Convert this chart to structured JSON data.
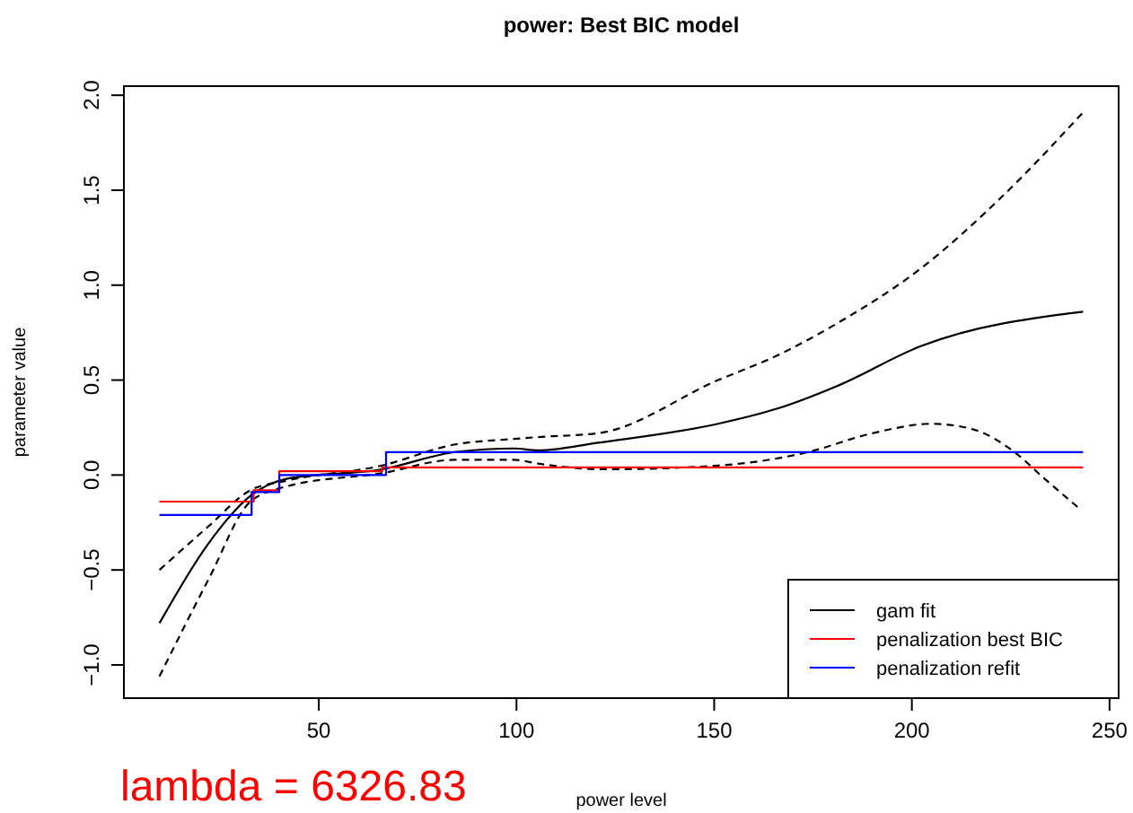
{
  "chart_data": {
    "type": "line",
    "title": "power: Best BIC model",
    "xlabel": "power level",
    "ylabel": "parameter value",
    "xlim": [
      0.7,
      252.3
    ],
    "ylim": [
      -1.175,
      2.048
    ],
    "xticks": [
      50,
      100,
      150,
      200,
      250
    ],
    "yticks": [
      {
        "value": -1.0,
        "label": "−1.0"
      },
      {
        "value": -0.5,
        "label": "−0.5"
      },
      {
        "value": 0.0,
        "label": "0.0"
      },
      {
        "value": 0.5,
        "label": "0.5"
      },
      {
        "value": 1.0,
        "label": "1.0"
      },
      {
        "value": 1.5,
        "label": "1.5"
      },
      {
        "value": 2.0,
        "label": "2.0"
      }
    ],
    "grid": false,
    "legend": "bottom right",
    "marker": "none",
    "annotations": [
      "lambda = 6326.83"
    ],
    "series": [
      {
        "name": "gam fit",
        "color": "#000000",
        "line_style": "solid",
        "x": [
          9.7,
          22.1,
          32.7,
          41.8,
          66,
          84.2,
          99.4,
          105.5,
          120.6,
          151,
          166,
          181.2,
          202.4,
          243.3
        ],
        "values": [
          -0.78,
          -0.36,
          -0.11,
          -0.02,
          0.03,
          0.12,
          0.14,
          0.13,
          0.17,
          0.27,
          0.35,
          0.47,
          0.68,
          0.86
        ]
      },
      {
        "color": "#000000",
        "line_style": "dashed",
        "x": [
          9.7,
          22.1,
          32.7,
          41.8,
          66,
          84.2,
          99.4,
          105.5,
          120.6,
          151,
          166,
          181.2,
          202.4,
          223,
          243.3
        ],
        "values": [
          -0.5,
          -0.27,
          -0.08,
          -0.03,
          0.05,
          0.16,
          0.19,
          0.2,
          0.22,
          0.5,
          0.63,
          0.8,
          1.09,
          1.47,
          1.91
        ]
      },
      {
        "color": "#000000",
        "line_style": "dashed",
        "x": [
          9.7,
          22.1,
          32.7,
          41.8,
          66,
          84.2,
          99.4,
          105.5,
          122,
          151,
          173.6,
          190,
          205,
          215.6,
          226,
          233.6,
          242
        ],
        "values": [
          -1.06,
          -0.55,
          -0.14,
          -0.06,
          0.01,
          0.08,
          0.08,
          0.06,
          0.03,
          0.05,
          0.12,
          0.22,
          0.27,
          0.24,
          0.12,
          -0.02,
          -0.17
        ]
      },
      {
        "name": "penalization best BIC",
        "type": "step",
        "color": "#ff0000",
        "line_style": "solid",
        "x": [
          9.7,
          33.5,
          40,
          66,
          243.3
        ],
        "values": [
          -0.14,
          -0.08,
          0.02,
          0.04,
          0.04
        ]
      },
      {
        "name": "penalization refit",
        "type": "step",
        "color": "#0000ff",
        "line_style": "solid",
        "x": [
          9.7,
          33,
          40,
          67,
          243.3
        ],
        "values": [
          -0.21,
          -0.09,
          0.0,
          0.12,
          0.12
        ]
      }
    ]
  }
}
